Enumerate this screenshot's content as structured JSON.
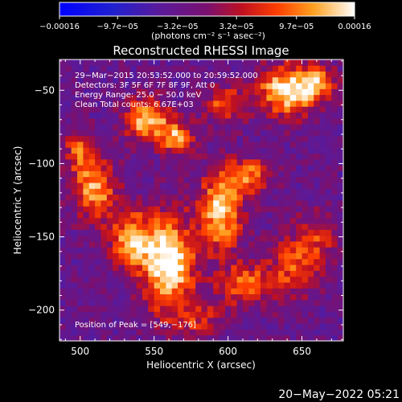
{
  "chart_data": {
    "type": "heatmap",
    "title": "Reconstructed RHESSI Image",
    "xlabel": "Heliocentric X (arcsec)",
    "ylabel": "Heliocentric Y (arcsec)",
    "xlim": [
      486,
      678
    ],
    "ylim": [
      -221,
      -29
    ],
    "x_ticks": [
      500,
      550,
      600,
      650
    ],
    "y_ticks": [
      -50,
      -100,
      -150,
      -200
    ],
    "x_tick_labels": [
      "500",
      "550",
      "600",
      "650"
    ],
    "y_tick_labels": [
      "−50",
      "−100",
      "−150",
      "−200"
    ],
    "colorbar": {
      "title": "(photons cm⁻² s⁻¹ asec⁻²)",
      "range": [
        -0.00016,
        0.00016
      ],
      "tick_values": [
        -0.00016,
        -9.7e-05,
        -3.2e-05,
        3.2e-05,
        9.7e-05,
        0.00016
      ],
      "tick_labels": [
        "−0.00016",
        "−9.7e−05",
        "−3.2e−05",
        "3.2e−05",
        "9.7e−05",
        "0.00016"
      ]
    },
    "annotations": [
      "29−Mar−2015 20:53:52.000 to 20:59:52.000",
      "Detectors: 3F 5F 6F 7F 8F 9F, Att 0",
      "Energy Range: 25.0 − 50.0 keV",
      "Clean     Total counts: 6.67E+03"
    ],
    "peak_label": "Position of Peak = [549,−176]",
    "peak": [
      549,
      -176
    ],
    "bright_regions": [
      {
        "x": 560,
        "y": -168,
        "amp": 1.0,
        "sx": 12,
        "sy": 22
      },
      {
        "x": 535,
        "y": -152,
        "amp": 0.75,
        "sx": 10,
        "sy": 14
      },
      {
        "x": 545,
        "y": -70,
        "amp": 0.85,
        "sx": 10,
        "sy": 10
      },
      {
        "x": 565,
        "y": -82,
        "amp": 0.7,
        "sx": 8,
        "sy": 8
      },
      {
        "x": 640,
        "y": -50,
        "amp": 0.9,
        "sx": 14,
        "sy": 12
      },
      {
        "x": 660,
        "y": -45,
        "amp": 0.6,
        "sx": 8,
        "sy": 8
      },
      {
        "x": 598,
        "y": -60,
        "amp": 0.55,
        "sx": 10,
        "sy": 8
      },
      {
        "x": 510,
        "y": -118,
        "amp": 0.7,
        "sx": 10,
        "sy": 14
      },
      {
        "x": 595,
        "y": -132,
        "amp": 0.85,
        "sx": 10,
        "sy": 18
      },
      {
        "x": 615,
        "y": -108,
        "amp": 0.6,
        "sx": 10,
        "sy": 8
      },
      {
        "x": 612,
        "y": -182,
        "amp": 0.55,
        "sx": 14,
        "sy": 10
      },
      {
        "x": 645,
        "y": -170,
        "amp": 0.45,
        "sx": 12,
        "sy": 14
      },
      {
        "x": 660,
        "y": -150,
        "amp": 0.35,
        "sx": 10,
        "sy": 12
      },
      {
        "x": 580,
        "y": -205,
        "amp": 0.35,
        "sx": 12,
        "sy": 8
      },
      {
        "x": 500,
        "y": -92,
        "amp": 0.5,
        "sx": 8,
        "sy": 10
      }
    ],
    "grid": false
  },
  "footer": {
    "date": "20−May−2022 05:21"
  }
}
